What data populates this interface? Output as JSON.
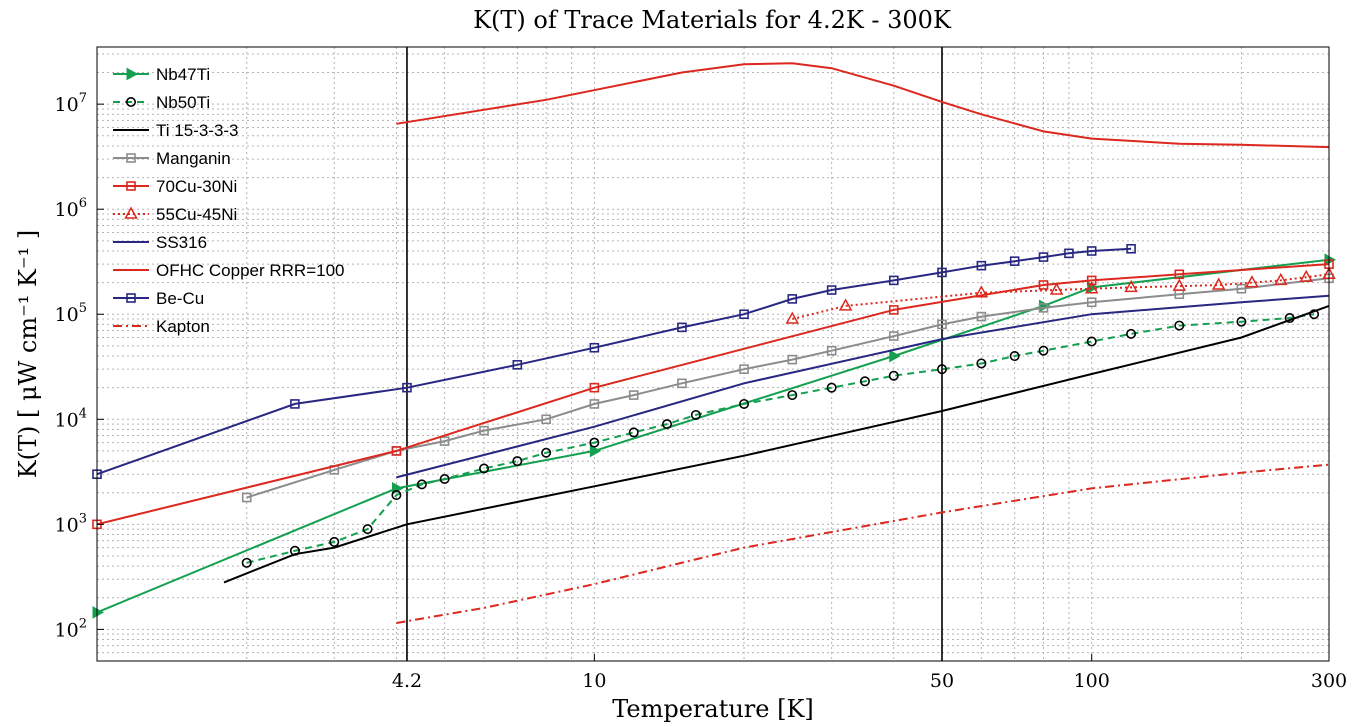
{
  "chart_data": {
    "type": "line",
    "title": "K(T) of Trace Materials for 4.2K - 300K",
    "xlabel": "Temperature [K]",
    "ylabel": "K(T) [ μW cm⁻¹ K⁻¹ ]",
    "x_scale": "log",
    "y_scale": "log",
    "xlim": [
      1,
      300
    ],
    "ylim": [
      50,
      35000000
    ],
    "x_tick_labels": [
      {
        "value": 4.2,
        "label": "4.2"
      },
      {
        "value": 10,
        "label": "10"
      },
      {
        "value": 50,
        "label": "50"
      },
      {
        "value": 100,
        "label": "100"
      },
      {
        "value": 300,
        "label": "300"
      }
    ],
    "y_tick_labels": [
      {
        "value": 100,
        "base": "10",
        "exp": "2"
      },
      {
        "value": 1000,
        "base": "10",
        "exp": "3"
      },
      {
        "value": 10000,
        "base": "10",
        "exp": "4"
      },
      {
        "value": 100000,
        "base": "10",
        "exp": "5"
      },
      {
        "value": 1000000,
        "base": "10",
        "exp": "6"
      },
      {
        "value": 10000000,
        "base": "10",
        "exp": "7"
      }
    ],
    "vertical_reference_lines": [
      4.2,
      50
    ],
    "grid": true,
    "legend_position": "top-left",
    "series": [
      {
        "name": "Nb47Ti",
        "color": "#14a050",
        "line": "solid",
        "marker": "triangle-right",
        "x": [
          1,
          4,
          10,
          40,
          80,
          100,
          300
        ],
        "y": [
          145,
          2200,
          5000,
          40000,
          120000,
          180000,
          330000
        ]
      },
      {
        "name": "Nb50Ti",
        "color": "#14a050",
        "marker_edge": "#000000",
        "line": "dashed",
        "marker": "circle",
        "x": [
          2,
          2.5,
          3,
          3.5,
          4,
          4.5,
          5,
          6,
          7,
          8,
          10,
          12,
          14,
          16,
          20,
          25,
          30,
          35,
          40,
          50,
          60,
          70,
          80,
          100,
          120,
          150,
          200,
          250,
          280
        ],
        "y": [
          430,
          560,
          680,
          900,
          1900,
          2400,
          2700,
          3400,
          4000,
          4800,
          6000,
          7500,
          9000,
          11000,
          14000,
          17000,
          20000,
          23000,
          26000,
          30000,
          34000,
          40000,
          45000,
          55000,
          65000,
          78000,
          85000,
          92000,
          100000
        ]
      },
      {
        "name": "Ti 15-3-3-3",
        "color": "#000000",
        "line": "solid",
        "marker": "none",
        "x": [
          1.8,
          2.5,
          3,
          4.2,
          10,
          20,
          50,
          100,
          200,
          300
        ],
        "y": [
          280,
          520,
          600,
          1000,
          2300,
          4500,
          12000,
          27000,
          60000,
          120000
        ]
      },
      {
        "name": "Manganin",
        "color": "#8c8c8c",
        "line": "solid",
        "marker": "square",
        "x": [
          2,
          3,
          4,
          5,
          6,
          8,
          10,
          12,
          15,
          20,
          25,
          30,
          40,
          50,
          60,
          80,
          100,
          150,
          200,
          300
        ],
        "y": [
          1800,
          3300,
          5000,
          6200,
          7800,
          10000,
          14000,
          17000,
          22000,
          30000,
          37000,
          45000,
          62000,
          80000,
          95000,
          115000,
          130000,
          155000,
          175000,
          220000
        ]
      },
      {
        "name": "70Cu-30Ni",
        "color": "#dc281e",
        "line": "solid",
        "marker": "square",
        "x": [
          1,
          4,
          10,
          40,
          80,
          100,
          150,
          300
        ],
        "y": [
          1000,
          5000,
          20000,
          110000,
          190000,
          210000,
          240000,
          300000
        ]
      },
      {
        "name": "55Cu-45Ni",
        "color": "#dc281e",
        "line": "dotted",
        "marker": "triangle-up",
        "x": [
          25,
          32,
          60,
          85,
          100,
          120,
          150,
          180,
          210,
          240,
          270,
          300
        ],
        "y": [
          90000,
          120000,
          160000,
          170000,
          175000,
          180000,
          185000,
          190000,
          200000,
          210000,
          225000,
          240000
        ]
      },
      {
        "name": "SS316",
        "color": "#282882",
        "line": "solid",
        "marker": "none",
        "x": [
          4,
          10,
          20,
          50,
          100,
          200,
          300
        ],
        "y": [
          2800,
          8500,
          22000,
          58000,
          100000,
          130000,
          150000
        ]
      },
      {
        "name": "OFHC Copper RRR=100",
        "color": "#dc281e",
        "line": "solid",
        "marker": "none",
        "x": [
          4,
          8,
          15,
          20,
          25,
          30,
          40,
          50,
          60,
          80,
          100,
          150,
          200,
          300
        ],
        "y": [
          6500000,
          11000000,
          20000000,
          24000000,
          24500000,
          22000000,
          15000000,
          10500000,
          8000000,
          5500000,
          4700000,
          4200000,
          4100000,
          3900000
        ]
      },
      {
        "name": "Be-Cu",
        "color": "#282882",
        "line": "solid",
        "marker": "square",
        "x": [
          1,
          2.5,
          4.2,
          7,
          10,
          15,
          20,
          25,
          30,
          40,
          50,
          60,
          70,
          80,
          90,
          100,
          120
        ],
        "y": [
          3000,
          14000,
          20000,
          33000,
          48000,
          75000,
          100000,
          140000,
          170000,
          210000,
          250000,
          290000,
          320000,
          350000,
          380000,
          400000,
          420000
        ]
      },
      {
        "name": "Kapton",
        "color": "#dc281e",
        "line": "dashdot",
        "marker": "none",
        "x": [
          4,
          6,
          10,
          20,
          50,
          100,
          200,
          300
        ],
        "y": [
          115,
          160,
          270,
          600,
          1300,
          2200,
          3100,
          3700
        ]
      }
    ]
  }
}
